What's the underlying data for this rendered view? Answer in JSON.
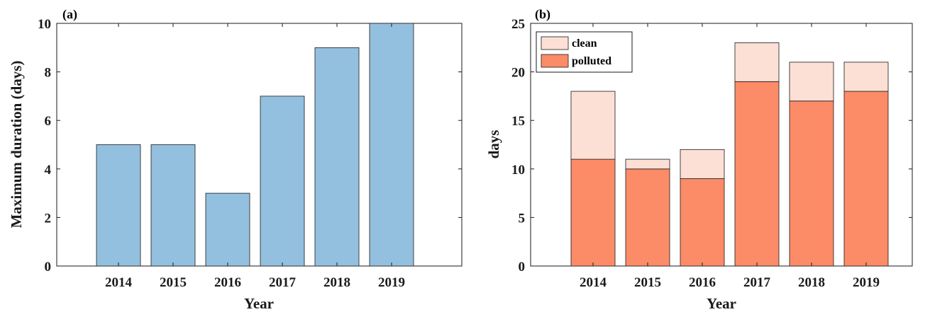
{
  "chart_data": [
    {
      "type": "bar",
      "panel_label": "(a)",
      "categories": [
        "2014",
        "2015",
        "2016",
        "2017",
        "2018",
        "2019"
      ],
      "values": [
        5,
        5,
        3,
        7,
        9,
        10
      ],
      "xlabel": "Year",
      "ylabel": "Maximum duration (days)",
      "ylim": [
        0,
        10
      ],
      "yticks": [
        0,
        2,
        4,
        6,
        8,
        10
      ],
      "color": "#94c0df",
      "grid": false
    },
    {
      "type": "bar",
      "stacked": true,
      "panel_label": "(b)",
      "categories": [
        "2014",
        "2015",
        "2016",
        "2017",
        "2018",
        "2019"
      ],
      "series": [
        {
          "name": "polluted",
          "values": [
            11,
            10,
            9,
            19,
            17,
            18
          ],
          "color": "#fc8b68"
        },
        {
          "name": "clean",
          "values": [
            7,
            1,
            3,
            4,
            4,
            3
          ],
          "color": "#fde0d5"
        }
      ],
      "xlabel": "Year",
      "ylabel": "days",
      "ylim": [
        0,
        25
      ],
      "yticks": [
        0,
        5,
        10,
        15,
        20,
        25
      ],
      "legend_position": "top-left",
      "grid": false
    }
  ]
}
